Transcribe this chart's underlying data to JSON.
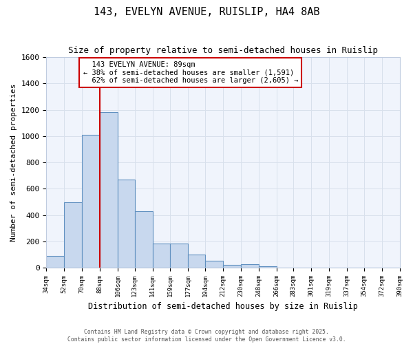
{
  "title_line1": "143, EVELYN AVENUE, RUISLIP, HA4 8AB",
  "title_line2": "Size of property relative to semi-detached houses in Ruislip",
  "xlabel": "Distribution of semi-detached houses by size in Ruislip",
  "ylabel": "Number of semi-detached properties",
  "property_label": "143 EVELYN AVENUE: 89sqm",
  "pct_smaller": 38,
  "pct_larger": 62,
  "count_smaller": 1591,
  "count_larger": 2605,
  "bin_edges": [
    34,
    52,
    70,
    88,
    106,
    123,
    141,
    159,
    177,
    194,
    212,
    230,
    248,
    266,
    283,
    301,
    319,
    337,
    354,
    372,
    390
  ],
  "bin_labels": [
    "34sqm",
    "52sqm",
    "70sqm",
    "88sqm",
    "106sqm",
    "123sqm",
    "141sqm",
    "159sqm",
    "177sqm",
    "194sqm",
    "212sqm",
    "230sqm",
    "248sqm",
    "266sqm",
    "283sqm",
    "301sqm",
    "319sqm",
    "337sqm",
    "354sqm",
    "372sqm",
    "390sqm"
  ],
  "bar_heights": [
    90,
    500,
    1010,
    1180,
    670,
    430,
    185,
    185,
    100,
    55,
    20,
    25,
    10,
    0,
    0,
    0,
    0,
    0,
    0,
    0
  ],
  "bar_color": "#c8d8ee",
  "bar_edge_color": "#6090c0",
  "vline_color": "#cc0000",
  "vline_x": 88,
  "annotation_box_color": "#cc0000",
  "grid_color": "#d8e0ec",
  "background_color": "#ffffff",
  "plot_bg_color": "#f0f4fc",
  "footer_text1": "Contains HM Land Registry data © Crown copyright and database right 2025.",
  "footer_text2": "Contains public sector information licensed under the Open Government Licence v3.0.",
  "ylim": [
    0,
    1600
  ]
}
